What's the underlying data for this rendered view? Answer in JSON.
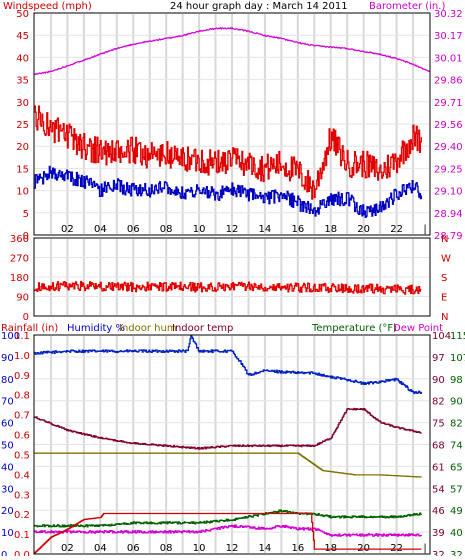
{
  "top": {
    "header_left": "Windspeed (mph)",
    "header_center": "24 hour graph day : March 14 2011",
    "header_right": "Barometer (in.)",
    "left_ticks": [
      "0",
      "5",
      "10",
      "15",
      "20",
      "25",
      "30",
      "35",
      "40",
      "45",
      "50"
    ],
    "right_ticks": [
      "28.79",
      "28.94",
      "29.10",
      "29.25",
      "29.40",
      "29.56",
      "29.71",
      "29.86",
      "30.01",
      "30.17",
      "30.32"
    ]
  },
  "mid": {
    "left_ticks": [
      "0",
      "90",
      "180",
      "270",
      "360"
    ],
    "right_ticks": [
      "N",
      "E",
      "S",
      "W",
      "N"
    ]
  },
  "bottom": {
    "header_rain": "Rainfall (in)",
    "header_humidity": "Humidity %",
    "header_indoor_hum": "Indoor hum",
    "header_indoor_temp": "Indoor temp",
    "header_temperature": "Temperature (°F)",
    "header_dew": "Dew Point",
    "rain_ticks": [
      "0.0",
      "0.1",
      "0.2",
      "0.3",
      "0.4",
      "0.5",
      "0.6",
      "0.7",
      "0.8",
      "0.9",
      "1.0",
      "1.1"
    ],
    "hum_ticks": [
      "0",
      "10",
      "20",
      "30",
      "40",
      "50",
      "60",
      "70",
      "80",
      "90",
      "100"
    ],
    "inner_right_ticks": [
      "32",
      "39",
      "46",
      "54",
      "61",
      "68",
      "75",
      "82",
      "90",
      "97",
      "104"
    ],
    "outer_right_ticks": [
      "32",
      "40",
      "49",
      "57",
      "65",
      "74",
      "82",
      "90",
      "98",
      "107",
      "115"
    ]
  },
  "x_tick_labels": [
    "02",
    "04",
    "06",
    "08",
    "10",
    "12",
    "14",
    "16",
    "18",
    "20",
    "22",
    "|"
  ],
  "colors": {
    "wind_gust": "#e00000",
    "wind_avg": "#0000c0",
    "barometer": "#d800d8",
    "direction": "#e00000",
    "humidity": "#0020c0",
    "indoor_hum": "#807000",
    "indoor_temp": "#800030",
    "temperature": "#006000",
    "dew_point": "#d000d0",
    "rainfall": "#d00000"
  },
  "chart_data": [
    {
      "type": "line",
      "x_unit": "hour",
      "xlim": [
        0,
        24
      ],
      "series": [
        {
          "name": "Windspeed (mph)",
          "axis": "left",
          "ylim": [
            0,
            50
          ],
          "x": [
            0,
            1,
            2,
            3,
            4,
            5,
            6,
            7,
            8,
            9,
            10,
            11,
            12,
            13,
            14,
            15,
            16,
            17,
            18,
            19,
            20,
            21,
            22,
            23,
            23.5
          ],
          "values": [
            27,
            24,
            22,
            20,
            19,
            18,
            19,
            18,
            18,
            17,
            17,
            16,
            17,
            16,
            15,
            16,
            14,
            10,
            22,
            16,
            16,
            14,
            17,
            22,
            21
          ]
        },
        {
          "name": "Windspeed average (mph)",
          "axis": "left",
          "ylim": [
            0,
            50
          ],
          "x": [
            0,
            1,
            2,
            3,
            4,
            5,
            6,
            7,
            8,
            9,
            10,
            11,
            12,
            13,
            14,
            15,
            16,
            17,
            18,
            19,
            20,
            21,
            22,
            23,
            23.5
          ],
          "values": [
            12,
            14,
            13,
            12,
            10,
            11,
            10,
            10,
            11,
            9,
            10,
            9,
            10,
            9,
            8,
            9,
            7,
            5,
            8,
            8,
            5,
            6,
            9,
            11,
            9
          ]
        },
        {
          "name": "Barometer (in.)",
          "axis": "right",
          "ylim": [
            28.79,
            30.32
          ],
          "x": [
            0,
            1,
            2,
            3,
            4,
            5,
            6,
            7,
            8,
            9,
            10,
            11,
            12,
            13,
            14,
            15,
            16,
            17,
            18,
            19,
            20,
            21,
            22,
            23,
            24
          ],
          "values": [
            29.9,
            29.92,
            29.96,
            30.0,
            30.04,
            30.08,
            30.11,
            30.13,
            30.15,
            30.17,
            30.2,
            30.22,
            30.22,
            30.2,
            30.17,
            30.15,
            30.12,
            30.1,
            30.09,
            30.08,
            30.06,
            30.04,
            30.01,
            29.97,
            29.92
          ]
        }
      ]
    },
    {
      "type": "line",
      "x_unit": "hour",
      "xlim": [
        0,
        24
      ],
      "ylim": [
        0,
        360
      ],
      "series": [
        {
          "name": "Wind direction",
          "x": [
            0,
            2,
            4,
            6,
            8,
            10,
            12,
            14,
            16,
            18,
            20,
            22,
            23.5
          ],
          "values": [
            130,
            140,
            135,
            132,
            135,
            130,
            138,
            135,
            130,
            128,
            125,
            122,
            118
          ]
        }
      ]
    },
    {
      "type": "line",
      "x_unit": "hour",
      "xlim": [
        0,
        24
      ],
      "series": [
        {
          "name": "Humidity %",
          "axis": "humidity",
          "ylim": [
            0,
            100
          ],
          "x": [
            0,
            2,
            4,
            6,
            8,
            9.3,
            9.5,
            10,
            12,
            12.5,
            13,
            14,
            16,
            17,
            18,
            19,
            20,
            22,
            23,
            23.5
          ],
          "values": [
            92,
            93,
            93,
            93,
            93,
            93,
            100,
            93,
            93,
            88,
            82,
            84,
            83,
            83,
            81,
            80,
            78,
            80,
            74,
            74
          ]
        },
        {
          "name": "Indoor hum",
          "axis": "humidity",
          "ylim": [
            0,
            100
          ],
          "x": [
            0,
            4,
            8,
            12,
            15,
            16,
            17.5,
            19.5,
            21,
            23.5
          ],
          "values": [
            46,
            46,
            46,
            46,
            46,
            46,
            38,
            36,
            36,
            35
          ]
        },
        {
          "name": "Indoor temp",
          "axis": "outer_right",
          "ylim": [
            32,
            115
          ],
          "x": [
            0,
            2,
            4,
            6,
            8,
            10,
            12,
            14,
            16,
            17,
            18,
            19,
            20,
            21,
            22,
            23.5
          ],
          "values": [
            84,
            79,
            76,
            74,
            73,
            72,
            73,
            73,
            73,
            73,
            76,
            87,
            87,
            82,
            80,
            78
          ]
        },
        {
          "name": "Temperature (°F)",
          "axis": "inner_right",
          "ylim": [
            32,
            104
          ],
          "x": [
            0,
            2,
            4,
            6,
            8,
            10,
            12,
            14,
            15,
            16,
            17,
            18,
            20,
            22,
            23.5
          ],
          "values": [
            41,
            41,
            41,
            42,
            42,
            42,
            43,
            45,
            46,
            45,
            45,
            44,
            44,
            44,
            45
          ]
        },
        {
          "name": "Dew Point",
          "axis": "inner_right",
          "ylim": [
            32,
            104
          ],
          "x": [
            0,
            2,
            4,
            6,
            8,
            10,
            12,
            14,
            15,
            16,
            17,
            18,
            20,
            22,
            23.5
          ],
          "values": [
            39,
            39,
            39,
            39,
            39,
            39,
            41,
            40,
            41,
            40,
            40,
            38,
            38,
            38,
            38
          ]
        },
        {
          "name": "Rainfall (in)",
          "axis": "rain",
          "ylim": [
            0,
            1.1
          ],
          "x": [
            0,
            1,
            2,
            3,
            4,
            4.2,
            16.8,
            17,
            20,
            23.5
          ],
          "values": [
            0.0,
            0.08,
            0.12,
            0.17,
            0.18,
            0.2,
            0.2,
            0.02,
            0.02,
            0.02
          ]
        }
      ]
    }
  ]
}
